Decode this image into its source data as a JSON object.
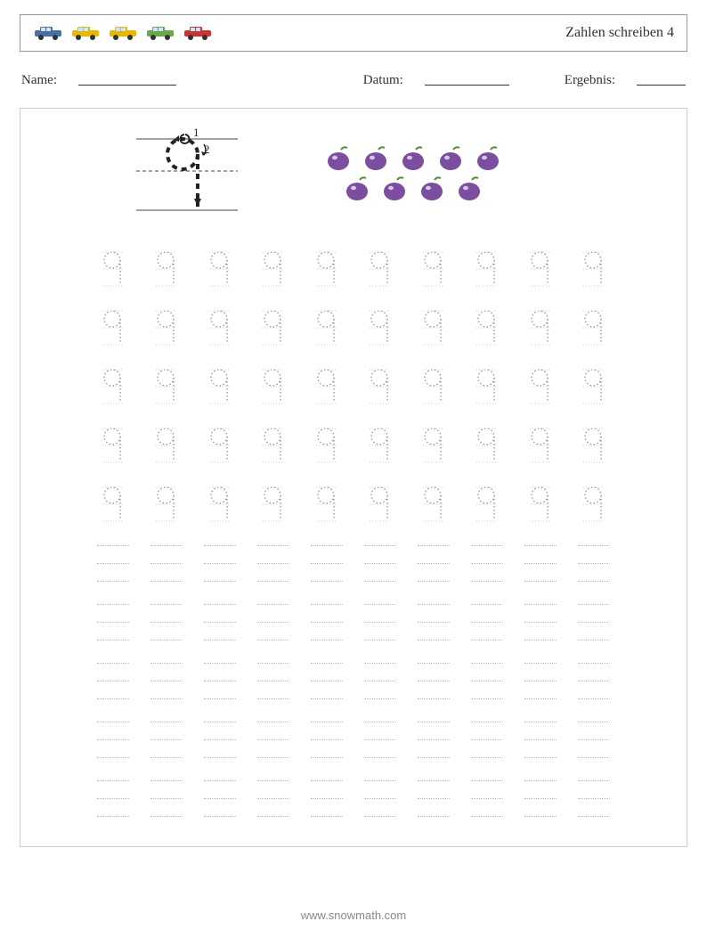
{
  "header": {
    "title": "Zahlen schreiben 4",
    "car_colors": [
      "#4a6fa5",
      "#e6b800",
      "#e6b800",
      "#6aa84f",
      "#cc3333"
    ]
  },
  "info": {
    "name_label": "Name:",
    "name_blank_width": 110,
    "date_label": "Datum:",
    "date_blank_width": 95,
    "result_label": "Ergebnis:",
    "result_blank_width": 55
  },
  "guide": {
    "stroke1_label": "1",
    "stroke2_label": "2",
    "dash_color": "#222222",
    "line_color": "#444444"
  },
  "counting": {
    "fruit": "plum",
    "row1_count": 5,
    "row2_count": 4,
    "plum_fill": "#7b4ea0",
    "plum_highlight": "#ffffff",
    "leaf_color": "#5a8a3a"
  },
  "practice": {
    "numeral": "9",
    "traced_rows": 5,
    "blank_rows": 5,
    "cells_per_row": 10,
    "dot_color": "#999999",
    "guideline_color": "#bbbbbb"
  },
  "colors": {
    "page_bg": "#ffffff",
    "border": "#999999",
    "inner_border": "#cccccc",
    "text": "#333333",
    "footer_text": "#888888"
  },
  "footer": {
    "text": "www.snowmath.com"
  }
}
